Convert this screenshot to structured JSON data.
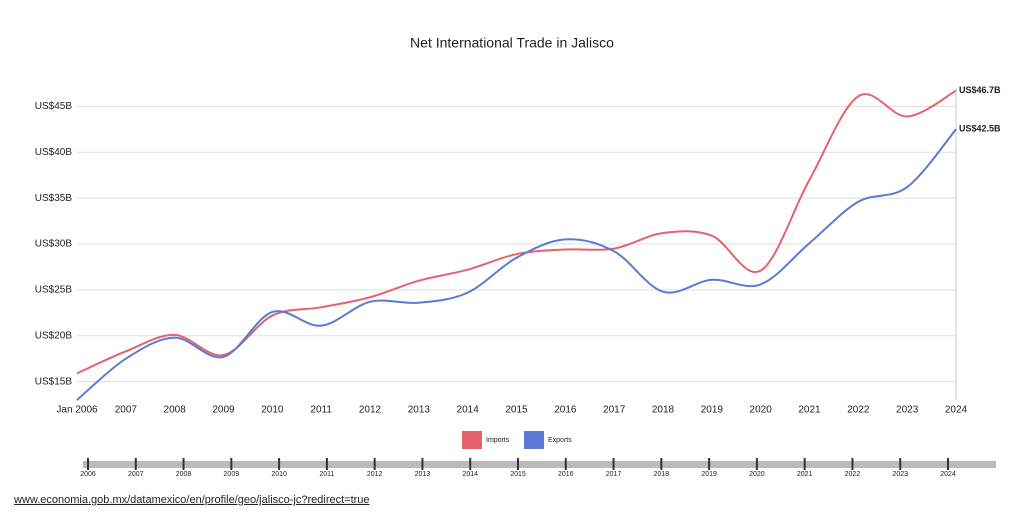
{
  "chart_data": {
    "type": "line",
    "title": "Net International Trade in Jalisco",
    "categories": [
      "Jan 2006",
      "2007",
      "2008",
      "2009",
      "2010",
      "2011",
      "2012",
      "2013",
      "2014",
      "2015",
      "2016",
      "2017",
      "2018",
      "2019",
      "2020",
      "2021",
      "2022",
      "2023",
      "2024"
    ],
    "series": [
      {
        "name": "Imports",
        "color": "#e4636f",
        "values": [
          15.9,
          18.3,
          20.1,
          17.9,
          22.2,
          23.1,
          24.2,
          26.0,
          27.2,
          28.9,
          29.4,
          29.5,
          31.2,
          30.9,
          27.1,
          37.0,
          46.1,
          43.9,
          46.7
        ],
        "value_labels": [
          null,
          null,
          null,
          null,
          null,
          null,
          null,
          null,
          null,
          null,
          null,
          null,
          null,
          null,
          null,
          null,
          null,
          null,
          "US$46.7B"
        ]
      },
      {
        "name": "Exports",
        "color": "#5a7ad6",
        "values": [
          13.0,
          17.5,
          19.8,
          17.7,
          22.6,
          21.1,
          23.7,
          23.6,
          24.7,
          28.5,
          30.5,
          29.2,
          24.8,
          26.1,
          25.6,
          30.1,
          34.6,
          36.2,
          42.5
        ],
        "value_labels": [
          null,
          null,
          null,
          null,
          null,
          null,
          null,
          null,
          null,
          null,
          null,
          null,
          null,
          null,
          null,
          null,
          null,
          null,
          "US$42.5B"
        ]
      }
    ],
    "ylim": [
      13,
      47
    ],
    "yticks": [
      {
        "value": 15,
        "label": "US$15B"
      },
      {
        "value": 20,
        "label": "US$20B"
      },
      {
        "value": 25,
        "label": "US$25B"
      },
      {
        "value": 30,
        "label": "US$30B"
      },
      {
        "value": 35,
        "label": "US$35B"
      },
      {
        "value": 40,
        "label": "US$40B"
      },
      {
        "value": 45,
        "label": "US$45B"
      }
    ],
    "grid": true,
    "legend": "bottom",
    "timeline_labels": [
      "2006",
      "2007",
      "2008",
      "2009",
      "2010",
      "2011",
      "2012",
      "2013",
      "2014",
      "2015",
      "2016",
      "2017",
      "2018",
      "2019",
      "2020",
      "2021",
      "2022",
      "2023",
      "2024"
    ]
  },
  "source_url": "www.economia.gob.mx/datamexico/en/profile/geo/jalisco-jc?redirect=true"
}
